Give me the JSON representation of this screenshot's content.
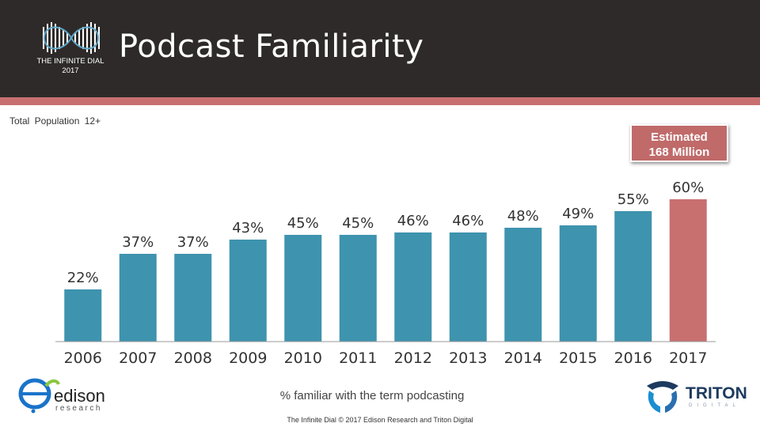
{
  "header": {
    "title": "Podcast Familiarity",
    "logo_line1": "THE INFINITE DIAL",
    "logo_line2": "2017"
  },
  "subtitle": "Total Population 12+",
  "callout": {
    "line1": "Estimated",
    "line2": "168 Million"
  },
  "caption": "% familiar with the term podcasting",
  "footer": "The Infinite Dial   © 2017 Edison Research and Triton Digital",
  "logos": {
    "edison_name": "edison",
    "edison_sub": "research",
    "triton_name": "TRITON",
    "triton_sub": "DIGITAL"
  },
  "colors": {
    "header_bg": "#2e2a2a",
    "accent": "#c87070",
    "bar": "#3e93ae",
    "bar_highlight": "#c87070"
  },
  "chart_data": {
    "type": "bar",
    "categories": [
      "2006",
      "2007",
      "2008",
      "2009",
      "2010",
      "2011",
      "2012",
      "2013",
      "2014",
      "2015",
      "2016",
      "2017"
    ],
    "values": [
      22,
      37,
      37,
      43,
      45,
      45,
      46,
      46,
      48,
      49,
      55,
      60
    ],
    "value_labels": [
      "22%",
      "37%",
      "37%",
      "43%",
      "45%",
      "45%",
      "46%",
      "46%",
      "48%",
      "49%",
      "55%",
      "60%"
    ],
    "highlight_category": "2017",
    "ylim": [
      0,
      100
    ],
    "grid": false
  }
}
